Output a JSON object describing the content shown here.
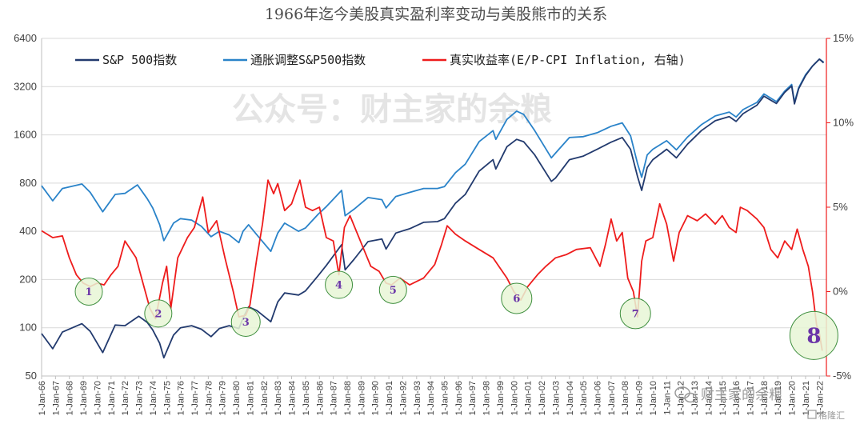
{
  "chart_data": {
    "type": "line",
    "title": "1966年迄今美股真实盈利率变动与美股熊市的关系",
    "colors": {
      "sp500": "#223a6e",
      "real_sp500": "#2a83c9",
      "real_yield": "#ee1c1c",
      "circle_fill": "#e7f6d6",
      "circle_stroke": "#3f8f3f",
      "marker_text": "#6a35a8"
    },
    "y_left": {
      "scale": "log2",
      "range": [
        50,
        6400
      ],
      "ticks": [
        "6400",
        "3200",
        "1600",
        "800",
        "400",
        "200",
        "100",
        "50"
      ]
    },
    "y_right": {
      "range": [
        -5,
        15
      ],
      "ticks": [
        "15%",
        "10%",
        "5%",
        "0%",
        "-5%"
      ],
      "unit": "%"
    },
    "x_range": [
      1966,
      2022.5
    ],
    "x_ticks": [
      "1-Jan-66",
      "1-Jan-67",
      "1-Jan-68",
      "1-Jan-69",
      "1-Jan-70",
      "1-Jan-71",
      "1-Jan-72",
      "1-Jan-73",
      "1-Jan-74",
      "1-Jan-75",
      "1-Jan-76",
      "1-Jan-77",
      "1-Jan-78",
      "1-Jan-79",
      "1-Jan-80",
      "1-Jan-81",
      "1-Jan-82",
      "1-Jan-83",
      "1-Jan-84",
      "1-Jan-85",
      "1-Jan-86",
      "1-Jan-87",
      "1-Jan-88",
      "1-Jan-89",
      "1-Jan-90",
      "1-Jan-91",
      "1-Jan-92",
      "1-Jan-93",
      "1-Jan-94",
      "1-Jan-95",
      "1-Jan-96",
      "1-Jan-97",
      "1-Jan-98",
      "1-Jan-99",
      "1-Jan-00",
      "1-Jan-01",
      "1-Jan-02",
      "1-Jan-03",
      "1-Jan-04",
      "1-Jan-05",
      "1-Jan-06",
      "1-Jan-07",
      "1-Jan-08",
      "1-Jan-09",
      "1-Jan-10",
      "1-Jan-11",
      "1-Jan-12",
      "1-Jan-13",
      "1-Jan-14",
      "1-Jan-15",
      "1-Jan-16",
      "1-Jan-17",
      "1-Jan-18",
      "1-Jan-19",
      "1-Jan-20",
      "1-Jan-21",
      "1-Jan-22"
    ],
    "legend": [
      "S&P 500指数",
      "通胀调整S&P500指数",
      "真实收益率(E/P-CPI Inflation, 右轴)"
    ],
    "series": [
      {
        "name": "S&P 500指数",
        "axis": "left",
        "points": [
          [
            1966.0,
            92
          ],
          [
            1966.8,
            74
          ],
          [
            1967.5,
            94
          ],
          [
            1968.9,
            106
          ],
          [
            1969.5,
            95
          ],
          [
            1970.4,
            70
          ],
          [
            1971.3,
            104
          ],
          [
            1972.0,
            103
          ],
          [
            1973.0,
            118
          ],
          [
            1973.6,
            108
          ],
          [
            1974.0,
            97
          ],
          [
            1974.5,
            80
          ],
          [
            1974.8,
            65
          ],
          [
            1975.5,
            90
          ],
          [
            1976.0,
            100
          ],
          [
            1976.8,
            103
          ],
          [
            1977.5,
            98
          ],
          [
            1978.2,
            88
          ],
          [
            1978.8,
            99
          ],
          [
            1979.5,
            103
          ],
          [
            1980.2,
            99
          ],
          [
            1980.5,
            115
          ],
          [
            1980.9,
            135
          ],
          [
            1981.5,
            128
          ],
          [
            1982.5,
            109
          ],
          [
            1983.0,
            145
          ],
          [
            1983.5,
            165
          ],
          [
            1984.5,
            160
          ],
          [
            1985.0,
            170
          ],
          [
            1985.9,
            211
          ],
          [
            1986.5,
            245
          ],
          [
            1987.6,
            330
          ],
          [
            1987.85,
            230
          ],
          [
            1988.5,
            268
          ],
          [
            1989.5,
            345
          ],
          [
            1990.5,
            358
          ],
          [
            1990.8,
            310
          ],
          [
            1991.5,
            390
          ],
          [
            1992.5,
            415
          ],
          [
            1993.5,
            455
          ],
          [
            1994.5,
            460
          ],
          [
            1995.0,
            480
          ],
          [
            1995.8,
            600
          ],
          [
            1996.5,
            680
          ],
          [
            1997.5,
            950
          ],
          [
            1998.5,
            1120
          ],
          [
            1998.7,
            980
          ],
          [
            1999.5,
            1350
          ],
          [
            2000.2,
            1500
          ],
          [
            2000.7,
            1450
          ],
          [
            2001.5,
            1200
          ],
          [
            2002.7,
            820
          ],
          [
            2003.0,
            860
          ],
          [
            2004.0,
            1120
          ],
          [
            2005.0,
            1180
          ],
          [
            2006.0,
            1300
          ],
          [
            2007.0,
            1440
          ],
          [
            2007.8,
            1540
          ],
          [
            2008.4,
            1300
          ],
          [
            2008.9,
            880
          ],
          [
            2009.2,
            720
          ],
          [
            2009.6,
            1000
          ],
          [
            2010.0,
            1120
          ],
          [
            2011.0,
            1300
          ],
          [
            2011.7,
            1150
          ],
          [
            2012.5,
            1400
          ],
          [
            2013.5,
            1700
          ],
          [
            2014.5,
            1960
          ],
          [
            2015.5,
            2080
          ],
          [
            2016.0,
            1940
          ],
          [
            2016.5,
            2170
          ],
          [
            2017.5,
            2450
          ],
          [
            2018.0,
            2790
          ],
          [
            2018.9,
            2510
          ],
          [
            2019.5,
            2950
          ],
          [
            2020.0,
            3230
          ],
          [
            2020.2,
            2500
          ],
          [
            2020.5,
            3100
          ],
          [
            2021.0,
            3750
          ],
          [
            2021.5,
            4300
          ],
          [
            2022.0,
            4750
          ],
          [
            2022.3,
            4500
          ]
        ]
      },
      {
        "name": "通胀调整S&P500指数",
        "axis": "left",
        "points": [
          [
            1966.0,
            770
          ],
          [
            1966.8,
            620
          ],
          [
            1967.5,
            740
          ],
          [
            1968.9,
            790
          ],
          [
            1969.5,
            700
          ],
          [
            1970.4,
            530
          ],
          [
            1971.3,
            680
          ],
          [
            1972.0,
            690
          ],
          [
            1972.9,
            780
          ],
          [
            1973.6,
            640
          ],
          [
            1974.0,
            560
          ],
          [
            1974.5,
            440
          ],
          [
            1974.8,
            350
          ],
          [
            1975.5,
            450
          ],
          [
            1976.0,
            480
          ],
          [
            1976.8,
            470
          ],
          [
            1977.5,
            430
          ],
          [
            1978.2,
            370
          ],
          [
            1978.8,
            400
          ],
          [
            1979.5,
            380
          ],
          [
            1980.2,
            340
          ],
          [
            1980.5,
            400
          ],
          [
            1980.9,
            440
          ],
          [
            1981.5,
            380
          ],
          [
            1982.5,
            300
          ],
          [
            1983.0,
            390
          ],
          [
            1983.5,
            450
          ],
          [
            1984.5,
            400
          ],
          [
            1985.0,
            420
          ],
          [
            1985.9,
            510
          ],
          [
            1986.5,
            570
          ],
          [
            1987.6,
            720
          ],
          [
            1987.85,
            500
          ],
          [
            1988.5,
            550
          ],
          [
            1989.5,
            650
          ],
          [
            1990.5,
            630
          ],
          [
            1990.8,
            560
          ],
          [
            1991.5,
            660
          ],
          [
            1992.5,
            700
          ],
          [
            1993.5,
            740
          ],
          [
            1994.5,
            740
          ],
          [
            1995.0,
            760
          ],
          [
            1995.8,
            930
          ],
          [
            1996.5,
            1050
          ],
          [
            1997.5,
            1450
          ],
          [
            1998.5,
            1700
          ],
          [
            1998.7,
            1500
          ],
          [
            1999.5,
            2000
          ],
          [
            2000.2,
            2250
          ],
          [
            2000.7,
            2150
          ],
          [
            2001.5,
            1700
          ],
          [
            2002.7,
            1150
          ],
          [
            2003.0,
            1230
          ],
          [
            2004.0,
            1540
          ],
          [
            2005.0,
            1560
          ],
          [
            2006.0,
            1650
          ],
          [
            2007.0,
            1810
          ],
          [
            2007.8,
            1900
          ],
          [
            2008.4,
            1580
          ],
          [
            2008.9,
            1060
          ],
          [
            2009.2,
            870
          ],
          [
            2009.6,
            1200
          ],
          [
            2010.0,
            1300
          ],
          [
            2011.0,
            1470
          ],
          [
            2011.7,
            1290
          ],
          [
            2012.5,
            1550
          ],
          [
            2013.5,
            1850
          ],
          [
            2014.5,
            2100
          ],
          [
            2015.5,
            2220
          ],
          [
            2016.0,
            2070
          ],
          [
            2016.5,
            2300
          ],
          [
            2017.5,
            2550
          ],
          [
            2018.0,
            2880
          ],
          [
            2018.9,
            2580
          ],
          [
            2019.5,
            3000
          ],
          [
            2020.0,
            3300
          ],
          [
            2020.2,
            2560
          ],
          [
            2020.5,
            3150
          ],
          [
            2021.0,
            3800
          ],
          [
            2021.5,
            4300
          ],
          [
            2022.0,
            4750
          ],
          [
            2022.3,
            4550
          ]
        ]
      },
      {
        "name": "真实收益率(E/P-CPI Inflation, 右轴)",
        "axis": "right",
        "points": [
          [
            1966.0,
            3.6
          ],
          [
            1966.8,
            3.2
          ],
          [
            1967.5,
            3.3
          ],
          [
            1968.0,
            2.0
          ],
          [
            1968.5,
            1.0
          ],
          [
            1969.0,
            0.5
          ],
          [
            1969.5,
            0.3
          ],
          [
            1970.0,
            0.5
          ],
          [
            1970.5,
            0.4
          ],
          [
            1971.0,
            1.0
          ],
          [
            1971.5,
            1.5
          ],
          [
            1972.0,
            3.0
          ],
          [
            1972.8,
            2.0
          ],
          [
            1973.3,
            0.5
          ],
          [
            1973.8,
            -1.0
          ],
          [
            1974.2,
            -1.6
          ],
          [
            1974.7,
            0.5
          ],
          [
            1975.0,
            1.5
          ],
          [
            1975.3,
            -1.0
          ],
          [
            1975.8,
            2.0
          ],
          [
            1976.5,
            3.2
          ],
          [
            1977.0,
            3.8
          ],
          [
            1977.6,
            5.6
          ],
          [
            1978.0,
            3.5
          ],
          [
            1978.6,
            4.2
          ],
          [
            1979.2,
            2.0
          ],
          [
            1979.8,
            0.0
          ],
          [
            1980.2,
            -1.5
          ],
          [
            1980.7,
            -1.4
          ],
          [
            1981.0,
            -0.8
          ],
          [
            1981.5,
            2.0
          ],
          [
            1981.9,
            4.0
          ],
          [
            1982.3,
            6.6
          ],
          [
            1982.7,
            5.8
          ],
          [
            1983.0,
            6.4
          ],
          [
            1983.5,
            4.8
          ],
          [
            1984.0,
            5.2
          ],
          [
            1984.6,
            6.6
          ],
          [
            1985.0,
            5.0
          ],
          [
            1985.5,
            4.8
          ],
          [
            1986.0,
            5.0
          ],
          [
            1986.5,
            3.2
          ],
          [
            1987.0,
            3.0
          ],
          [
            1987.4,
            1.0
          ],
          [
            1987.8,
            3.8
          ],
          [
            1988.2,
            4.5
          ],
          [
            1988.7,
            3.5
          ],
          [
            1989.2,
            2.5
          ],
          [
            1989.7,
            1.5
          ],
          [
            1990.3,
            1.2
          ],
          [
            1990.8,
            0.5
          ],
          [
            1991.2,
            0.4
          ],
          [
            1991.8,
            0.8
          ],
          [
            1992.5,
            0.4
          ],
          [
            1993.5,
            0.8
          ],
          [
            1994.3,
            1.6
          ],
          [
            1994.8,
            2.8
          ],
          [
            1995.2,
            3.9
          ],
          [
            1995.8,
            3.4
          ],
          [
            1996.5,
            3.0
          ],
          [
            1997.5,
            2.5
          ],
          [
            1998.5,
            2.0
          ],
          [
            1999.0,
            1.4
          ],
          [
            1999.5,
            0.8
          ],
          [
            2000.0,
            0.0
          ],
          [
            2000.5,
            -0.5
          ],
          [
            2001.0,
            0.3
          ],
          [
            2001.7,
            1.0
          ],
          [
            2002.3,
            1.5
          ],
          [
            2003.0,
            2.0
          ],
          [
            2003.8,
            2.2
          ],
          [
            2004.5,
            2.5
          ],
          [
            2005.5,
            2.6
          ],
          [
            2006.2,
            1.5
          ],
          [
            2006.6,
            2.8
          ],
          [
            2007.0,
            4.3
          ],
          [
            2007.4,
            3.0
          ],
          [
            2007.8,
            3.5
          ],
          [
            2008.2,
            0.8
          ],
          [
            2008.6,
            0.0
          ],
          [
            2008.9,
            -1.5
          ],
          [
            2009.2,
            1.8
          ],
          [
            2009.5,
            3.0
          ],
          [
            2010.0,
            3.2
          ],
          [
            2010.5,
            5.2
          ],
          [
            2011.0,
            4.0
          ],
          [
            2011.5,
            1.8
          ],
          [
            2011.9,
            3.5
          ],
          [
            2012.5,
            4.5
          ],
          [
            2013.2,
            4.2
          ],
          [
            2013.8,
            4.6
          ],
          [
            2014.5,
            4.0
          ],
          [
            2015.0,
            4.5
          ],
          [
            2015.5,
            3.8
          ],
          [
            2016.0,
            3.5
          ],
          [
            2016.3,
            5.0
          ],
          [
            2016.8,
            4.8
          ],
          [
            2017.5,
            4.3
          ],
          [
            2018.0,
            3.8
          ],
          [
            2018.5,
            2.5
          ],
          [
            2019.0,
            2.0
          ],
          [
            2019.5,
            3.0
          ],
          [
            2020.0,
            2.5
          ],
          [
            2020.4,
            3.7
          ],
          [
            2020.8,
            2.5
          ],
          [
            2021.2,
            1.5
          ],
          [
            2021.5,
            0.0
          ],
          [
            2021.8,
            -2.0
          ],
          [
            2022.0,
            -2.5
          ],
          [
            2022.2,
            -3.5
          ]
        ]
      }
    ],
    "markers": [
      {
        "label": "1",
        "x": 1969.4,
        "y": 0.0,
        "r": 17
      },
      {
        "label": "2",
        "x": 1974.4,
        "y": -1.3,
        "r": 17
      },
      {
        "label": "3",
        "x": 1980.7,
        "y": -1.8,
        "r": 18
      },
      {
        "label": "4",
        "x": 1987.4,
        "y": 0.4,
        "r": 17
      },
      {
        "label": "5",
        "x": 1991.3,
        "y": 0.1,
        "r": 17
      },
      {
        "label": "6",
        "x": 2000.2,
        "y": -0.4,
        "r": 19
      },
      {
        "label": "7",
        "x": 2008.75,
        "y": -1.3,
        "r": 19
      },
      {
        "label": "8",
        "x": 2021.6,
        "y": -2.6,
        "r": 30
      }
    ]
  },
  "watermark": {
    "center": "公众号：财主家的余粮",
    "corner": "财主家的余粮",
    "source": "格隆汇",
    "corner_icon": "wechat-icon"
  }
}
